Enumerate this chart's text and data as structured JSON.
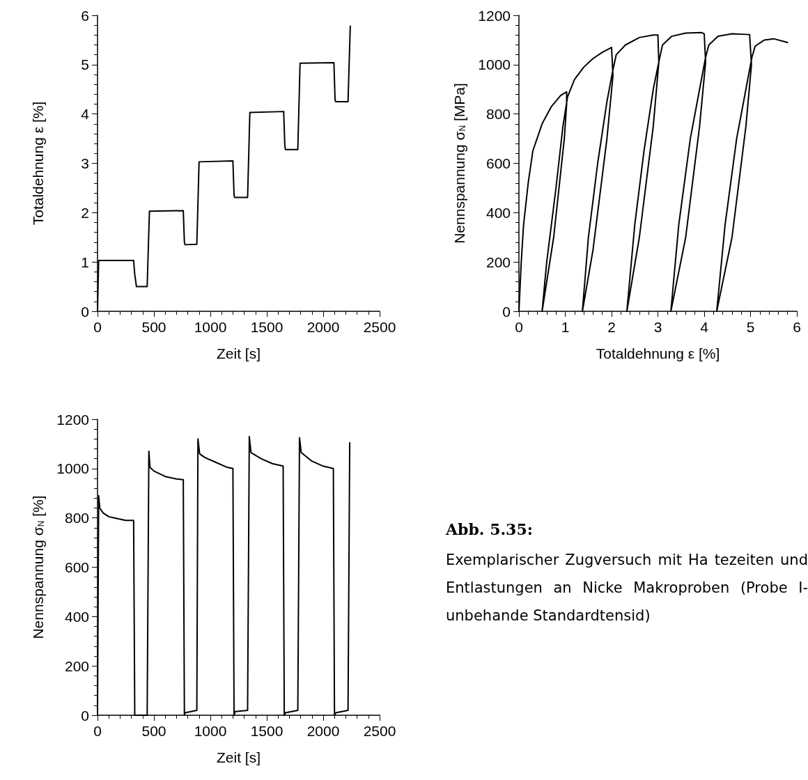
{
  "chart_data": [
    {
      "type": "line",
      "xlabel": "Zeit [s]",
      "ylabel": "Totaldehnung ε [%]",
      "xlim": [
        0,
        2500
      ],
      "xticks": [
        0,
        500,
        1000,
        1500,
        2000,
        2500
      ],
      "ylim": [
        0,
        6
      ],
      "yticks": [
        0,
        1,
        2,
        3,
        4,
        5,
        6
      ],
      "grid": false,
      "marker": "none",
      "line_style": "solid",
      "series": [
        {
          "color": "#000000",
          "x": [
            0,
            10,
            320,
            330,
            345,
            440,
            460,
            760,
            770,
            775,
            880,
            900,
            1200,
            1210,
            1215,
            1330,
            1350,
            1650,
            1660,
            1665,
            1775,
            1795,
            2095,
            2105,
            2110,
            2220,
            2240
          ],
          "values": [
            0,
            1.03,
            1.03,
            0.75,
            0.5,
            0.5,
            2.03,
            2.04,
            1.4,
            1.35,
            1.36,
            3.03,
            3.05,
            2.35,
            2.31,
            2.31,
            4.03,
            4.05,
            3.35,
            3.28,
            3.28,
            5.03,
            5.04,
            4.3,
            4.25,
            4.25,
            5.78
          ]
        }
      ]
    },
    {
      "type": "line",
      "xlabel": "Totaldehnung ε [%]",
      "ylabel": "Nennspannung σ$_{N}$ [MPa]",
      "xlim": [
        0,
        6
      ],
      "xticks": [
        0,
        1,
        2,
        3,
        4,
        5,
        6
      ],
      "ylim": [
        0,
        1200
      ],
      "yticks": [
        0,
        200,
        400,
        600,
        800,
        1000,
        1200
      ],
      "grid": false,
      "marker": "none",
      "line_style": "solid",
      "series": [
        {
          "color": "#000000",
          "x": [
            0,
            0.05,
            0.1,
            0.2,
            0.3,
            0.5,
            0.7,
            0.9,
            1.03,
            1.03,
            0.98,
            0.75,
            0.5,
            0.6,
            0.8,
            0.95,
            1.05,
            1.2,
            1.4,
            1.6,
            1.8,
            2.0,
            2.03,
            1.9,
            1.6,
            1.37,
            1.5,
            1.7,
            1.9,
            2.03,
            2.1,
            2.3,
            2.6,
            2.9,
            3.0,
            3.02,
            2.9,
            2.6,
            2.33,
            2.5,
            2.7,
            2.9,
            3.03,
            3.1,
            3.3,
            3.6,
            3.95,
            4.0,
            4.03,
            3.9,
            3.6,
            3.28,
            3.45,
            3.7,
            3.9,
            4.03,
            4.1,
            4.3,
            4.6,
            4.98,
            5.02,
            4.9,
            4.6,
            4.27,
            4.45,
            4.7,
            4.9,
            5.03,
            5.1,
            5.3,
            5.5,
            5.8
          ],
          "values": [
            0,
            200,
            350,
            520,
            650,
            760,
            830,
            875,
            890,
            840,
            700,
            300,
            0,
            200,
            500,
            750,
            870,
            940,
            990,
            1025,
            1050,
            1070,
            955,
            700,
            250,
            0,
            300,
            600,
            850,
            980,
            1040,
            1080,
            1110,
            1120,
            1120,
            1010,
            750,
            300,
            0,
            350,
            650,
            900,
            1020,
            1080,
            1115,
            1128,
            1130,
            1125,
            1010,
            750,
            300,
            0,
            350,
            700,
            900,
            1030,
            1080,
            1115,
            1125,
            1122,
            1000,
            750,
            300,
            0,
            350,
            700,
            900,
            1030,
            1075,
            1100,
            1105,
            1090
          ]
        }
      ]
    },
    {
      "type": "line",
      "xlabel": "Zeit [s]",
      "ylabel": "Nennspannung σ$_{N}$ [%]",
      "xlim": [
        0,
        2500
      ],
      "xticks": [
        0,
        500,
        1000,
        1500,
        2000,
        2500
      ],
      "ylim": [
        0,
        1200
      ],
      "yticks": [
        0,
        200,
        400,
        600,
        800,
        1000,
        1200
      ],
      "grid": false,
      "marker": "none",
      "line_style": "solid",
      "series": [
        {
          "color": "#000000",
          "x": [
            0,
            10,
            20,
            50,
            100,
            150,
            200,
            250,
            320,
            330,
            440,
            455,
            465,
            500,
            600,
            700,
            760,
            770,
            775,
            880,
            890,
            905,
            950,
            1050,
            1150,
            1200,
            1210,
            1220,
            1330,
            1345,
            1360,
            1450,
            1550,
            1645,
            1655,
            1665,
            1775,
            1790,
            1805,
            1900,
            2000,
            2090,
            2100,
            2110,
            2220,
            2235
          ],
          "values": [
            0,
            890,
            840,
            820,
            805,
            800,
            795,
            790,
            790,
            0,
            0,
            1070,
            1005,
            990,
            968,
            958,
            955,
            0,
            10,
            20,
            1120,
            1060,
            1045,
            1025,
            1005,
            1000,
            0,
            15,
            20,
            1130,
            1065,
            1040,
            1020,
            1010,
            0,
            10,
            20,
            1125,
            1065,
            1030,
            1010,
            1000,
            0,
            10,
            20,
            1105
          ]
        }
      ]
    },
    {
      "type": "other",
      "title": "Abb. 5.35:",
      "annotations": [
        "Exemplarischer Zugversuch mit Ha tezeiten und Entlastungen an Nicke Makroproben (Probe I-unbehande Standardtensid)"
      ]
    }
  ]
}
